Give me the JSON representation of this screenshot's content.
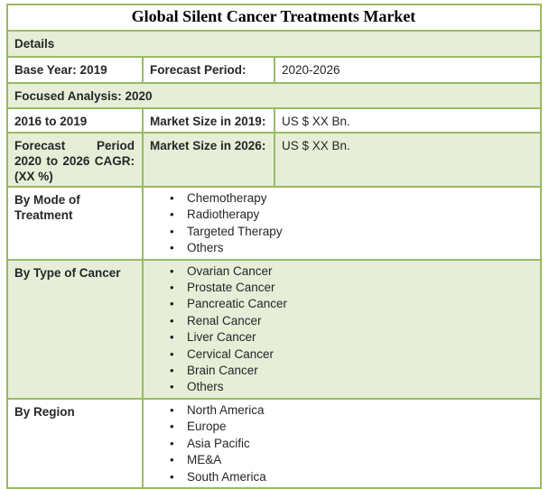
{
  "table": {
    "title": "Global Silent Cancer Treatments Market",
    "bullet": "•",
    "colors": {
      "border_green": "#9aba64",
      "row_green_fill": "#e6eed7",
      "text": "#262626"
    },
    "rows": {
      "details": {
        "label": "Details"
      },
      "base_year": {
        "label": "Base Year: 2019",
        "key": "Forecast Period:",
        "value": "2020-2026"
      },
      "focused": {
        "label": "Focused Analysis: 2020"
      },
      "historical": {
        "label": "2016 to 2019",
        "key": "Market Size in 2019:",
        "value": "US $ XX Bn."
      },
      "cagr": {
        "label": "Forecast Period 2020 to 2026 CAGR: (XX %)",
        "key": "Market Size in 2026:",
        "value": "US $ XX Bn."
      },
      "mode": {
        "label": "By Mode of Treatment",
        "items": [
          "Chemotherapy",
          "Radiotherapy",
          "Targeted Therapy",
          "Others"
        ]
      },
      "type": {
        "label": "By Type of Cancer",
        "items": [
          "Ovarian Cancer",
          "Prostate Cancer",
          "Pancreatic Cancer",
          "Renal Cancer",
          "Liver Cancer",
          "Cervical Cancer",
          "Brain Cancer",
          "Others"
        ]
      },
      "region": {
        "label": "By Region",
        "items": [
          "North America",
          "Europe",
          "Asia Pacific",
          "ME&A",
          "South America"
        ]
      }
    }
  }
}
